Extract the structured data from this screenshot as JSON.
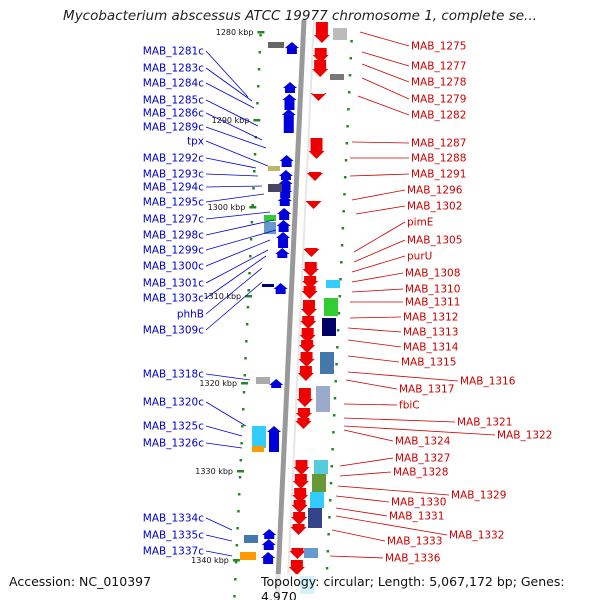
{
  "title": "Mycobacterium abscessus ATCC 19977 chromosome 1, complete se...",
  "footer": {
    "accession": "Accession: NC_010397",
    "summary": "Topology: circular; Length: 5,067,172 bp; Genes: 4,970"
  },
  "colors": {
    "forward": "#ee0000",
    "reverse": "#0000dd",
    "label_forward": "#cc0000",
    "label_reverse": "#0000cc",
    "ruler_tick": "#228822",
    "backbone": "#999999"
  },
  "ruler_ticks": [
    "1280 kbp",
    "1290 kbp",
    "1300 kbp",
    "1310 kbp",
    "1320 kbp",
    "1330 kbp",
    "1340 kbp"
  ],
  "left_labels": [
    "MAB_1281c",
    "MAB_1283c",
    "MAB_1284c",
    "MAB_1285c",
    "MAB_1286c",
    "MAB_1289c",
    "tpx",
    "MAB_1292c",
    "MAB_1293c",
    "MAB_1294c",
    "MAB_1295c",
    "MAB_1297c",
    "MAB_1298c",
    "MAB_1299c",
    "MAB_1300c",
    "MAB_1301c",
    "MAB_1303c",
    "phhB",
    "MAB_1309c",
    "MAB_1318c",
    "MAB_1320c",
    "MAB_1325c",
    "MAB_1326c",
    "MAB_1334c",
    "MAB_1335c",
    "MAB_1337c"
  ],
  "right_labels": [
    "MAB_1275",
    "MAB_1277",
    "MAB_1278",
    "MAB_1279",
    "MAB_1282",
    "MAB_1287",
    "MAB_1288",
    "MAB_1291",
    "MAB_1296",
    "MAB_1302",
    "pimE",
    "MAB_1305",
    "purU",
    "MAB_1308",
    "MAB_1310",
    "MAB_1311",
    "MAB_1312",
    "MAB_1313",
    "MAB_1314",
    "MAB_1315",
    "MAB_1316",
    "MAB_1317",
    "fbiC",
    "MAB_1321",
    "MAB_1322",
    "MAB_1324",
    "MAB_1327",
    "MAB_1328",
    "MAB_1329",
    "MAB_1330",
    "MAB_1331",
    "MAB_1332",
    "MAB_1333",
    "MAB_1336"
  ]
}
